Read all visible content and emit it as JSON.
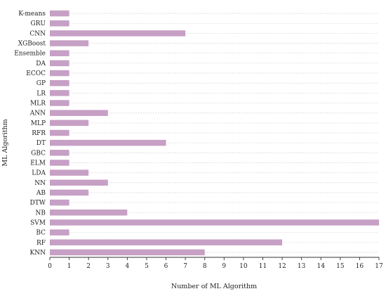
{
  "chart_data": {
    "type": "bar",
    "orientation": "horizontal",
    "categories": [
      "K-means",
      "GRU",
      "CNN",
      "XGBoost",
      "Ensemble",
      "DA",
      "ECOC",
      "GP",
      "LR",
      "MLR",
      "ANN",
      "MLP",
      "RFR",
      "DT",
      "GBC",
      "ELM",
      "LDA",
      "NN",
      "AB",
      "DTW",
      "NB",
      "SVM",
      "BC",
      "RF",
      "KNN"
    ],
    "values": [
      1,
      1,
      7,
      2,
      1,
      1,
      1,
      1,
      1,
      1,
      3,
      2,
      1,
      6,
      1,
      1,
      2,
      3,
      2,
      1,
      4,
      17,
      1,
      12,
      8
    ],
    "xlabel": "Number of ML Algorithm",
    "ylabel": "ML Algorithm",
    "xlim": [
      0,
      17
    ],
    "xticks": [
      "0",
      "1",
      "2",
      "3",
      "4",
      "5",
      "6",
      "7",
      "8",
      "9",
      "10",
      "11",
      "12",
      "13",
      "14",
      "15",
      "16",
      "17"
    ],
    "grid": "horizontal-dotted",
    "legend": "none",
    "bar_color": "#c7a0c5"
  }
}
